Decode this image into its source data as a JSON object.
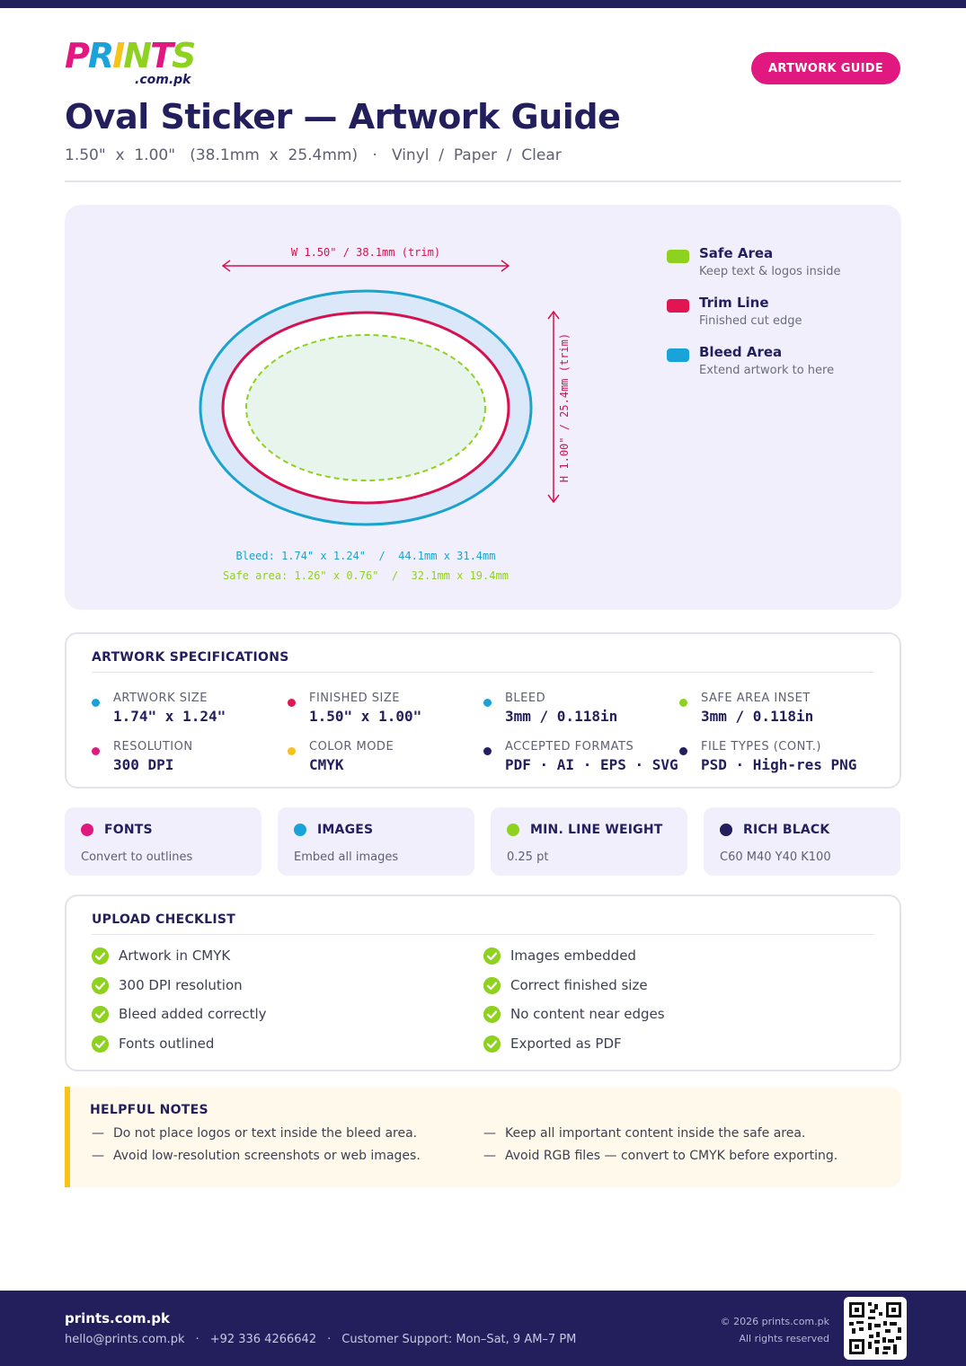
{
  "brand": {
    "logo_letters": [
      "P",
      "R",
      "I",
      "N",
      "T",
      "S"
    ],
    "logo_colors": [
      "#e0187f",
      "#1aa3d9",
      "#f7c21a",
      "#8fd11f",
      "#e0187f",
      "#8fd11f"
    ],
    "domain": ".com.pk"
  },
  "header": {
    "badge": "ARTWORK GUIDE",
    "title": "Oval Sticker — Artwork Guide",
    "subtitle": "1.50\"  x  1.00\"   (38.1mm  x  25.4mm)   ·   Vinyl  /  Paper  /  Clear"
  },
  "diagram": {
    "width_label": "W 1.50\" / 38.1mm (trim)",
    "height_label": "H 1.00\" / 25.4mm (trim)",
    "bleed_label": "Bleed: 1.74\" x 1.24\"  /  44.1mm x 31.4mm",
    "safe_label": "Safe area: 1.26\" x 0.76\"  /  32.1mm x 19.4mm",
    "colors": {
      "bleed": "#1aa3cc",
      "trim": "#d5124f",
      "safe": "#8fd11f",
      "bleed_fill": "#dbe8f9",
      "safe_fill": "#e8f5ec"
    }
  },
  "legend": [
    {
      "title": "Safe Area",
      "desc": "Keep text & logos inside",
      "color": "#8fd11f"
    },
    {
      "title": "Trim Line",
      "desc": "Finished cut edge",
      "color": "#e01552"
    },
    {
      "title": "Bleed Area",
      "desc": "Extend artwork to here",
      "color": "#1aa3d9"
    }
  ],
  "specs": {
    "heading": "ARTWORK SPECIFICATIONS",
    "items": [
      {
        "label": "ARTWORK SIZE",
        "value": "1.74\" x 1.24\"",
        "color": "#1aa3d9"
      },
      {
        "label": "FINISHED SIZE",
        "value": "1.50\" x 1.00\"",
        "color": "#e01552"
      },
      {
        "label": "BLEED",
        "value": "3mm / 0.118in",
        "color": "#1aa3d9"
      },
      {
        "label": "SAFE AREA INSET",
        "value": "3mm / 0.118in",
        "color": "#8fd11f"
      },
      {
        "label": "RESOLUTION",
        "value": "300 DPI",
        "color": "#e0187f"
      },
      {
        "label": "COLOR MODE",
        "value": "CMYK",
        "color": "#f7c21a"
      },
      {
        "label": "ACCEPTED FORMATS",
        "value": "PDF · AI · EPS · SVG",
        "color": "#221f5c"
      },
      {
        "label": "FILE TYPES (CONT.)",
        "value": "PSD · High-res PNG",
        "color": "#221f5c"
      }
    ]
  },
  "tiles": [
    {
      "title": "FONTS",
      "desc": "Convert to outlines",
      "color": "#e0187f"
    },
    {
      "title": "IMAGES",
      "desc": "Embed all images",
      "color": "#1aa3d9"
    },
    {
      "title": "MIN. LINE WEIGHT",
      "desc": "0.25 pt",
      "color": "#8fd11f"
    },
    {
      "title": "RICH BLACK",
      "desc": "C60 M40 Y40 K100",
      "color": "#221f5c"
    }
  ],
  "checklist": {
    "heading": "UPLOAD CHECKLIST",
    "items": [
      "Artwork in CMYK",
      "300 DPI resolution",
      "Bleed added correctly",
      "Fonts outlined",
      "Images embedded",
      "Correct finished size",
      "No content near edges",
      "Exported as PDF"
    ]
  },
  "notes": {
    "heading": "HELPFUL NOTES",
    "items": [
      "Do not place logos or text inside the bleed area.",
      "Avoid low-resolution screenshots or web images.",
      "Keep all important content inside the safe area.",
      "Avoid RGB files — convert to CMYK before exporting."
    ]
  },
  "footer": {
    "site": "prints.com.pk",
    "email": "hello@prints.com.pk",
    "phone": "+92 336 4266642",
    "support": "Customer Support: Mon–Sat, 9 AM–7 PM",
    "copyright": "© 2026 prints.com.pk",
    "rights": "All rights reserved"
  }
}
